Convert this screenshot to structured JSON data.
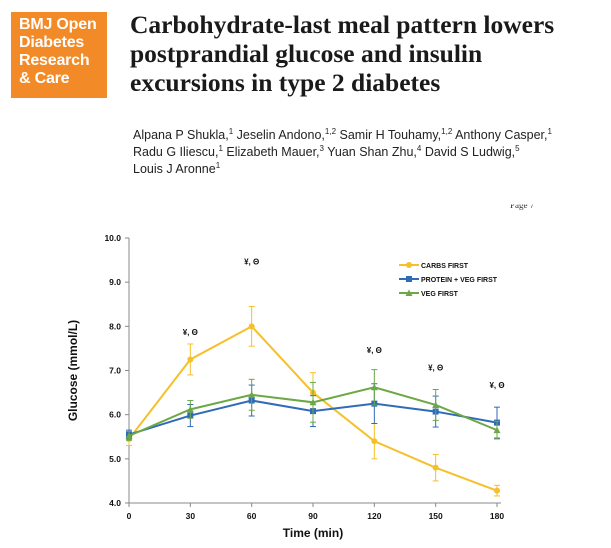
{
  "journal": {
    "badge_lines": [
      "BMJ Open",
      "Diabetes",
      "Research",
      "& Care"
    ],
    "badge_color": "#f28a28"
  },
  "paper": {
    "title_lines": [
      "Carbohydrate-last meal pattern lowers",
      "postprandial glucose and insulin",
      "excursions in type 2 diabetes"
    ],
    "authors_lines": [
      [
        {
          "name": "Alpana P Shukla,",
          "sup": "1"
        },
        {
          "name": "Jeselin Andono,",
          "sup": "1,2"
        },
        {
          "name": "Samir H Touhamy,",
          "sup": "1,2"
        },
        {
          "name": "Anthony Casper,",
          "sup": "1"
        }
      ],
      [
        {
          "name": "Radu G Iliescu,",
          "sup": "1"
        },
        {
          "name": "Elizabeth Mauer,",
          "sup": "3"
        },
        {
          "name": "Yuan Shan Zhu,",
          "sup": "4"
        },
        {
          "name": "David S Ludwig,",
          "sup": "5"
        }
      ],
      [
        {
          "name": "Louis J Aronne",
          "sup": "1"
        }
      ]
    ],
    "page_mark": "Page 7"
  },
  "chart_data": {
    "type": "line",
    "xlabel": "Time (min)",
    "ylabel": "Glucose (mmol/L)",
    "x": [
      0,
      30,
      60,
      90,
      120,
      150,
      180
    ],
    "xlim": [
      0,
      180
    ],
    "ylim": [
      4.0,
      10.0
    ],
    "y_ticks": [
      "4.0",
      "5.0",
      "6.0",
      "7.0",
      "8.0",
      "9.0",
      "10.0"
    ],
    "x_ticks": [
      "0",
      "30",
      "60",
      "90",
      "120",
      "150",
      "180"
    ],
    "grid": false,
    "legend_position": "top-right",
    "series": [
      {
        "name": "CARBS FIRST",
        "color": "#f5c02a",
        "marker": "circle",
        "values": [
          5.45,
          7.25,
          8.0,
          6.5,
          5.4,
          4.8,
          4.28
        ],
        "errors": [
          0.15,
          0.35,
          0.45,
          0.45,
          0.4,
          0.3,
          0.12
        ]
      },
      {
        "name": "PROTEIN + VEG FIRST",
        "color": "#2f6bb8",
        "marker": "square",
        "values": [
          5.55,
          5.98,
          6.32,
          6.08,
          6.25,
          6.07,
          5.82
        ],
        "errors": [
          0.1,
          0.25,
          0.35,
          0.35,
          0.45,
          0.35,
          0.35
        ]
      },
      {
        "name": "VEG FIRST",
        "color": "#6ca844",
        "marker": "triangle",
        "values": [
          5.52,
          6.12,
          6.45,
          6.28,
          6.62,
          6.22,
          5.65
        ],
        "errors": [
          0.1,
          0.2,
          0.35,
          0.45,
          0.4,
          0.35,
          0.2
        ]
      }
    ],
    "annotations": [
      {
        "x": 30,
        "y": 7.8,
        "text": "¥, Θ"
      },
      {
        "x": 60,
        "y": 9.4,
        "text": "¥, Θ"
      },
      {
        "x": 120,
        "y": 7.4,
        "text": "¥, Θ"
      },
      {
        "x": 150,
        "y": 7.0,
        "text": "¥, Θ"
      },
      {
        "x": 180,
        "y": 6.6,
        "text": "¥, Θ"
      }
    ]
  }
}
